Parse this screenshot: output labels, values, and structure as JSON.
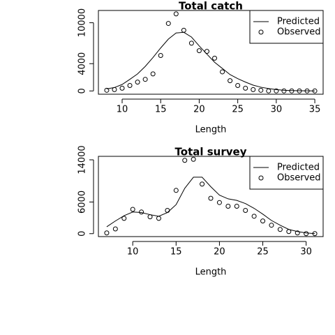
{
  "chart_data": [
    {
      "type": "line",
      "title": "Total catch",
      "x_label": "Length",
      "x": [
        8,
        9,
        10,
        11,
        12,
        13,
        14,
        15,
        16,
        17,
        18,
        19,
        20,
        21,
        22,
        23,
        24,
        25,
        26,
        27,
        28,
        29,
        30,
        31,
        32,
        33,
        34,
        35
      ],
      "series": [
        {
          "name": "Predicted",
          "color": "#000000",
          "kind": "line",
          "values": [
            300,
            500,
            950,
            1700,
            2500,
            3600,
            4900,
            6300,
            7600,
            8500,
            8600,
            7900,
            6600,
            5400,
            4200,
            3300,
            2400,
            1800,
            1300,
            850,
            550,
            350,
            200,
            100,
            60,
            30,
            20,
            10
          ]
        },
        {
          "name": "Observed",
          "color": "#000000",
          "kind": "points",
          "values": [
            100,
            200,
            400,
            800,
            1300,
            1700,
            2500,
            5200,
            9900,
            11300,
            8900,
            7000,
            5900,
            5800,
            4800,
            2800,
            1500,
            800,
            400,
            200,
            100,
            0,
            0,
            0,
            0,
            0,
            0,
            0
          ]
        }
      ],
      "xlim": [
        6.92,
        36.08
      ],
      "xticks": [
        10,
        15,
        20,
        25,
        30,
        35
      ],
      "ylim": [
        -480,
        11800
      ],
      "yticks": [
        0,
        4000,
        10000
      ],
      "legend": "topright"
    },
    {
      "type": "line",
      "title": "Total survey",
      "x_label": "Length",
      "x": [
        7,
        8,
        9,
        10,
        11,
        12,
        13,
        14,
        15,
        16,
        17,
        18,
        19,
        20,
        21,
        22,
        23,
        24,
        25,
        26,
        27,
        28,
        29,
        30,
        31
      ],
      "series": [
        {
          "name": "Predicted",
          "color": "#000000",
          "kind": "line",
          "values": [
            1300,
            2400,
            3400,
            4100,
            4000,
            3600,
            3300,
            4000,
            5500,
            8600,
            10700,
            10700,
            8900,
            7300,
            6600,
            6300,
            5700,
            4800,
            3700,
            2500,
            1600,
            800,
            400,
            130,
            0
          ]
        },
        {
          "name": "Observed",
          "color": "#000000",
          "kind": "points",
          "values": [
            130,
            900,
            2900,
            4600,
            4100,
            3200,
            2900,
            4400,
            8200,
            13900,
            14100,
            9400,
            6700,
            5900,
            5200,
            5200,
            4400,
            3300,
            2400,
            1600,
            800,
            400,
            130,
            0,
            0
          ]
        }
      ],
      "xlim": [
        6.04,
        31.96
      ],
      "xticks": [
        10,
        15,
        20,
        25,
        30
      ],
      "ylim": [
        -560,
        14660
      ],
      "yticks": [
        0,
        6000,
        14000
      ],
      "legend": "topright"
    }
  ]
}
